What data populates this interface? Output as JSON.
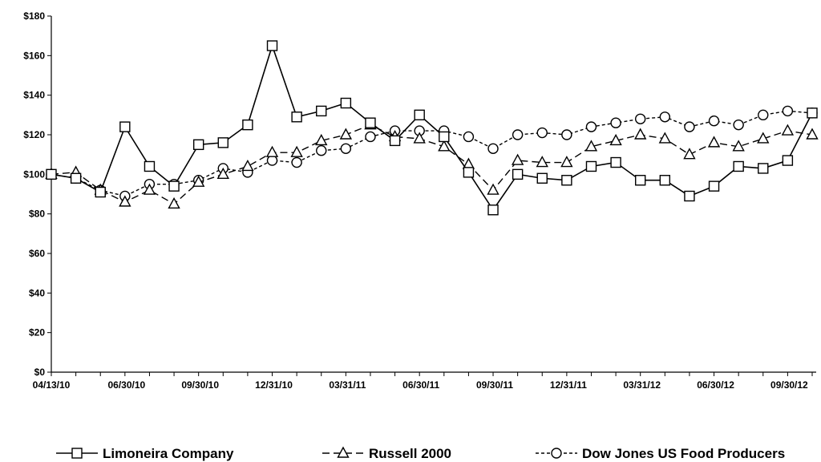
{
  "chart_data": {
    "type": "line",
    "title": "",
    "xlabel": "",
    "ylabel": "",
    "ylim": [
      0,
      180
    ],
    "grid": false,
    "legend_position": "bottom",
    "y_ticks": [
      "$0",
      "$20",
      "$40",
      "$60",
      "$80",
      "$100",
      "$120",
      "$140",
      "$160",
      "$180"
    ],
    "x_tick_labels": [
      "04/13/10",
      "06/30/10",
      "09/30/10",
      "12/31/10",
      "03/31/11",
      "06/30/11",
      "09/30/11",
      "12/31/11",
      "03/31/12",
      "06/30/12",
      "09/30/12"
    ],
    "series": [
      {
        "name": "Limoneira Company",
        "marker": "square",
        "dash": "solid",
        "values": [
          100,
          98,
          91,
          124,
          104,
          94,
          115,
          116,
          125,
          165,
          129,
          132,
          136,
          126,
          117,
          130,
          119,
          101,
          82,
          100,
          98,
          97,
          104,
          106,
          97,
          97,
          89,
          94,
          104,
          103,
          107,
          131
        ]
      },
      {
        "name": "Russell 2000",
        "marker": "triangle",
        "dash": "long-dash",
        "values": [
          100,
          101,
          92,
          86,
          92,
          85,
          96,
          100,
          104,
          111,
          111,
          117,
          120,
          125,
          119,
          118,
          114,
          105,
          92,
          107,
          106,
          106,
          114,
          117,
          120,
          118,
          110,
          116,
          114,
          118,
          122,
          120
        ]
      },
      {
        "name": "Dow Jones US Food Producers",
        "marker": "circle",
        "dash": "short-dash",
        "values": [
          100,
          98,
          92,
          89,
          95,
          95,
          97,
          103,
          101,
          107,
          106,
          112,
          113,
          119,
          122,
          122,
          122,
          119,
          113,
          120,
          121,
          120,
          124,
          126,
          128,
          129,
          124,
          127,
          125,
          130,
          132,
          131
        ]
      }
    ]
  },
  "colors": {
    "line": "#000000",
    "background": "#ffffff"
  }
}
